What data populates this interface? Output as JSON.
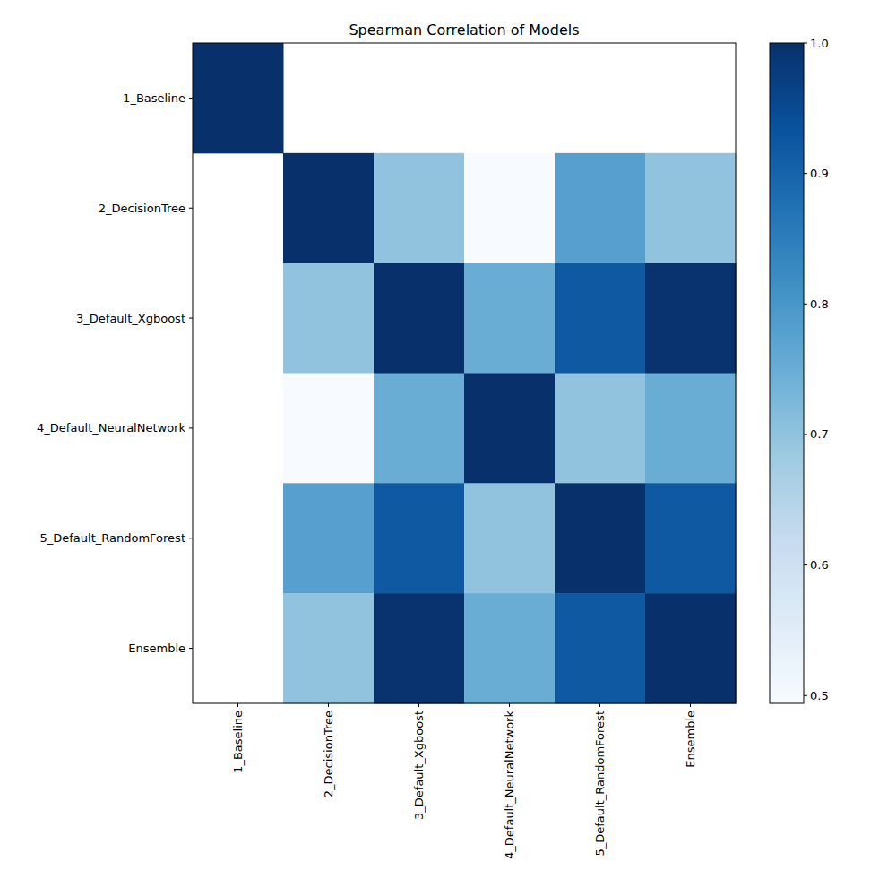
{
  "chart_data": {
    "type": "heatmap",
    "title": "Spearman Correlation of Models",
    "categories": [
      "1_Baseline",
      "2_DecisionTree",
      "3_Default_Xgboost",
      "4_Default_NeuralNetwork",
      "5_Default_RandomForest",
      "Ensemble"
    ],
    "cells": [
      [
        1.0,
        null,
        null,
        null,
        null,
        null
      ],
      [
        null,
        1.0,
        0.7,
        0.494,
        0.78,
        0.7
      ],
      [
        null,
        0.7,
        1.0,
        0.75,
        0.92,
        0.995
      ],
      [
        null,
        0.494,
        0.75,
        1.0,
        0.7,
        0.75
      ],
      [
        null,
        0.78,
        0.92,
        0.7,
        1.0,
        0.92
      ],
      [
        null,
        0.7,
        0.995,
        0.75,
        0.92,
        1.0
      ]
    ],
    "colorbar_range": [
      0.494,
      1.0
    ],
    "colorbar_ticks": [
      0.5,
      0.6,
      0.7,
      0.8,
      0.9,
      {
        "value": 1.0,
        "label": "1.0"
      }
    ]
  }
}
